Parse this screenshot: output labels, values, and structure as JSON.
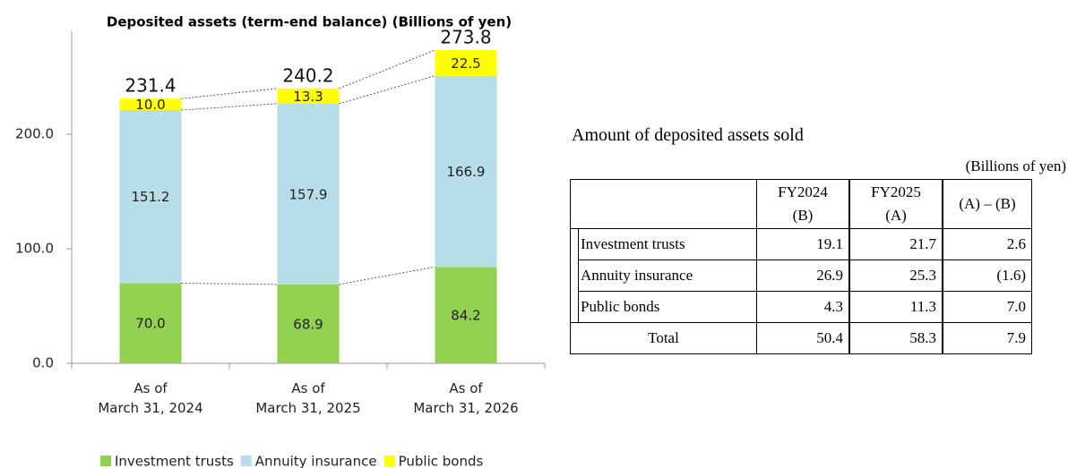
{
  "chart_data": {
    "type": "stacked_bar",
    "title": "Deposited assets (term-end balance) (Billions of yen)",
    "categories": [
      "As of\nMarch 31, 2024",
      "As of\nMarch 31, 2025",
      "As of\nMarch 31, 2026"
    ],
    "series": [
      {
        "name": "Investment trusts",
        "color": "#92d050",
        "values": [
          70.0,
          68.9,
          84.2
        ],
        "value_labels": [
          "70.0",
          "68.9",
          "84.2"
        ]
      },
      {
        "name": "Annuity insurance",
        "color": "#b7dde8",
        "values": [
          151.2,
          157.9,
          166.9
        ],
        "value_labels": [
          "151.2",
          "157.9",
          "166.9"
        ]
      },
      {
        "name": "Public bonds",
        "color": "#ffff00",
        "values": [
          10.0,
          13.3,
          22.5
        ],
        "value_labels": [
          "10.0",
          "13.3",
          "22.5"
        ]
      }
    ],
    "totals": [
      231.4,
      240.2,
      273.8
    ],
    "ylim": [
      0,
      290
    ],
    "yticks": [
      {
        "value": 0,
        "label": "0.0"
      },
      {
        "value": 100,
        "label": "100.0"
      },
      {
        "value": 200,
        "label": "200.0"
      }
    ],
    "legend": "bottom"
  },
  "table": {
    "title": "Amount of deposited assets sold",
    "unit": "(Billions of yen)",
    "columns": [
      "FY2024\n(B)",
      "FY2025\n(A)",
      "(A) – (B)"
    ],
    "rows": [
      [
        "Investment trusts",
        "19.1",
        "21.7",
        "2.6"
      ],
      [
        "Annuity insurance",
        "26.9",
        "25.3",
        "(1.6)"
      ],
      [
        "Public bonds",
        "4.3",
        "11.3",
        "7.0"
      ]
    ],
    "total": [
      "Total",
      "50.4",
      "58.3",
      "7.9"
    ]
  }
}
